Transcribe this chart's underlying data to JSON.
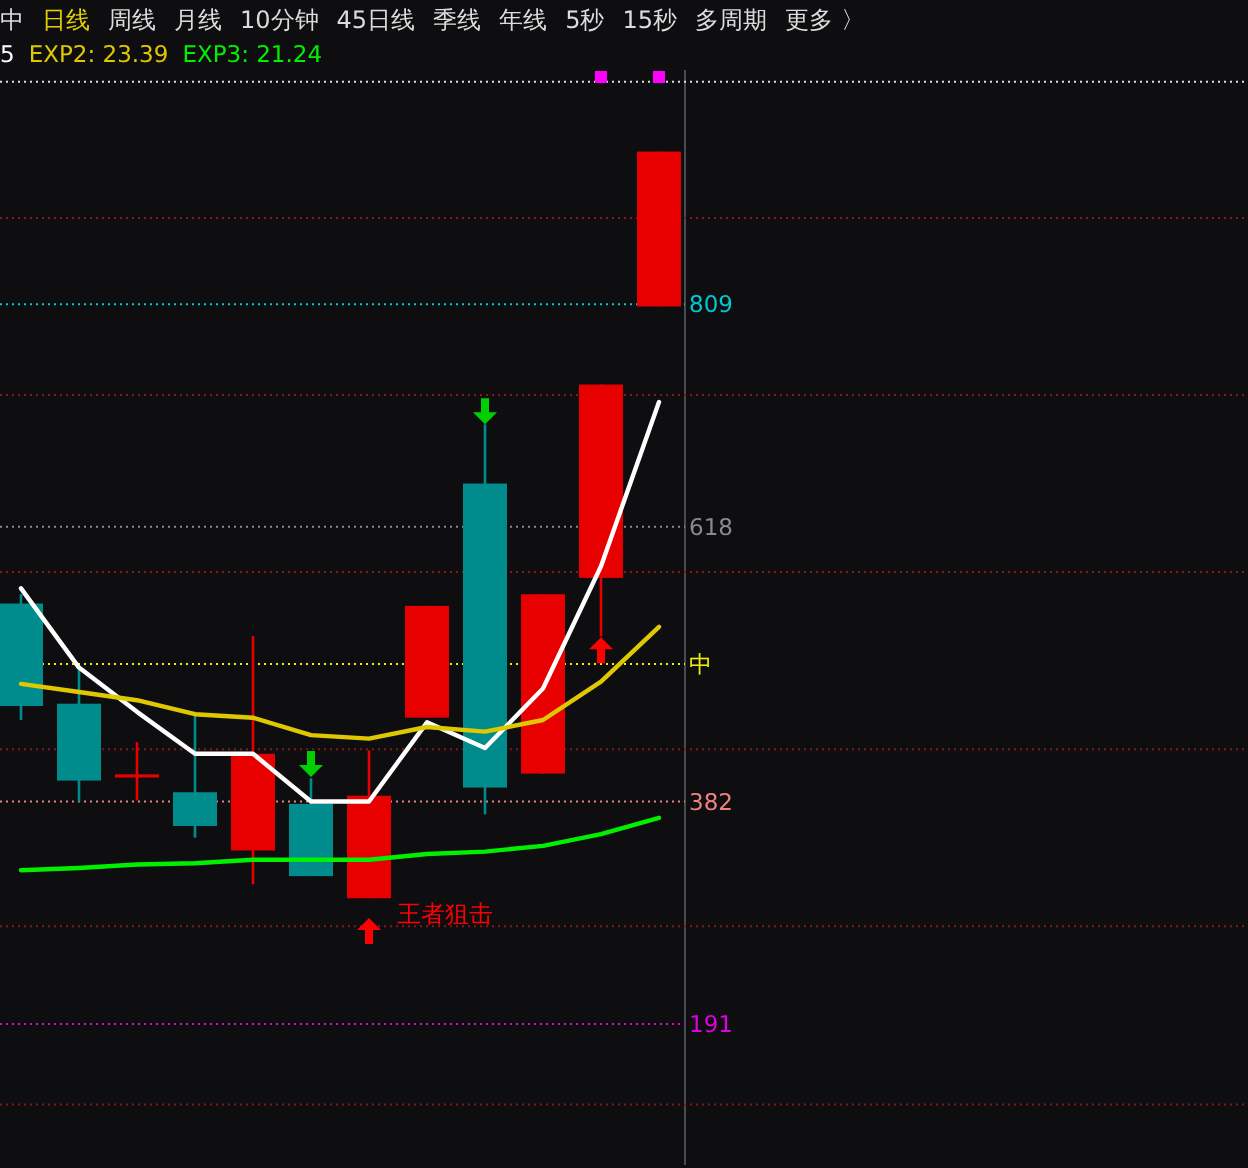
{
  "chart_data": {
    "type": "candlestick",
    "categories": [
      null,
      null,
      null,
      null,
      null,
      null,
      null,
      null,
      null,
      null,
      null,
      null
    ],
    "ohlc": [
      [
        552,
        560,
        452,
        464
      ],
      [
        466,
        495,
        382,
        400
      ],
      [
        404,
        433,
        383,
        404
      ],
      [
        390,
        459,
        351,
        361
      ],
      [
        340,
        524,
        311,
        423
      ],
      [
        380,
        402,
        318,
        318
      ],
      [
        299,
        426,
        299,
        387
      ],
      [
        454,
        550,
        454,
        550
      ],
      [
        655,
        706,
        371,
        394
      ],
      [
        406,
        560,
        406,
        560
      ],
      [
        574,
        740,
        524,
        740
      ],
      [
        807,
        940,
        807,
        940
      ]
    ],
    "colors": [
      "#008c8c",
      "#008c8c",
      "#e80000",
      "#008c8c",
      "#e80000",
      "#008c8c",
      "#e80000",
      "#e80000",
      "#008c8c",
      "#e80000",
      "#e80000",
      "#e80000"
    ],
    "series": [
      {
        "type": "line",
        "name": "5",
        "color": "#ffffff",
        "values": [
          565,
          497,
          459,
          423,
          423,
          382,
          382,
          450,
          428,
          479,
          584,
          725
        ]
      },
      {
        "type": "line",
        "name": "EXP2: 23.39",
        "color": "#e0c800",
        "values": [
          483,
          476,
          469,
          457,
          454,
          439,
          436,
          446,
          442,
          452,
          485,
          532
        ]
      },
      {
        "type": "line",
        "name": "EXP3: 21.24",
        "color": "#00f000",
        "values": [
          323,
          325,
          328,
          329,
          332,
          332,
          332,
          337,
          339,
          344,
          354,
          368
        ]
      },
      {
        "type": "scatter",
        "name": "王者狙击",
        "color": "#ff0000",
        "marker": "triangle",
        "values": [
          null,
          null,
          null,
          null,
          null,
          null,
          270,
          null,
          null,
          null,
          null,
          null
        ]
      },
      {
        "type": "scatter",
        "color": "#ff0000",
        "marker": "triangle",
        "values": [
          null,
          null,
          null,
          null,
          null,
          null,
          null,
          null,
          null,
          null,
          511,
          null
        ]
      },
      {
        "type": "scatter",
        "color": "#00d000",
        "marker": "triangle",
        "values": [
          null,
          null,
          null,
          null,
          null,
          415,
          null,
          null,
          718,
          null,
          null,
          null
        ]
      },
      {
        "type": "scatter",
        "color": "#ff00ff",
        "marker": "square",
        "values": [
          null,
          null,
          null,
          null,
          null,
          null,
          null,
          null,
          null,
          null,
          1004,
          1004
        ]
      }
    ],
    "ylim": [
      70,
      1010
    ],
    "yticks": [
      191,
      382,
      618,
      809
    ],
    "legend": "top left",
    "ref_lines": [
      {
        "axis": "y",
        "value": 1000,
        "color": "#e0e0e0",
        "line_style": "dotted"
      },
      {
        "axis": "y",
        "value": 883,
        "color": "#8a1616",
        "line_style": "dotted"
      },
      {
        "axis": "y",
        "value": 809,
        "color": "#00c8d2",
        "line_style": "dotted"
      },
      {
        "axis": "y",
        "value": 731,
        "color": "#8a1616",
        "line_style": "dotted"
      },
      {
        "axis": "y",
        "value": 618,
        "color": "#8a8a8a",
        "line_style": "dotted"
      },
      {
        "axis": "y",
        "value": 579,
        "color": "#8a1616",
        "line_style": "dotted"
      },
      {
        "axis": "y",
        "value": 500,
        "label": "中",
        "color": "#f0f000",
        "line_style": "dotted"
      },
      {
        "axis": "y",
        "value": 427,
        "color": "#8a1616",
        "line_style": "dotted"
      },
      {
        "axis": "y",
        "value": 382,
        "color": "#f08080",
        "line_style": "dotted"
      },
      {
        "axis": "y",
        "value": 275,
        "color": "#8a1616",
        "line_style": "dotted"
      },
      {
        "axis": "y",
        "value": 191,
        "color": "#e000e0",
        "line_style": "dotted"
      },
      {
        "axis": "y",
        "value": 122,
        "color": "#8a1616",
        "line_style": "dotted"
      }
    ],
    "annotations": [
      "中",
      "日线",
      "周线",
      "月线",
      "10分钟",
      "45日线",
      "季线",
      "年线",
      "5秒",
      "15秒",
      "多周期",
      "更多 〉"
    ]
  }
}
